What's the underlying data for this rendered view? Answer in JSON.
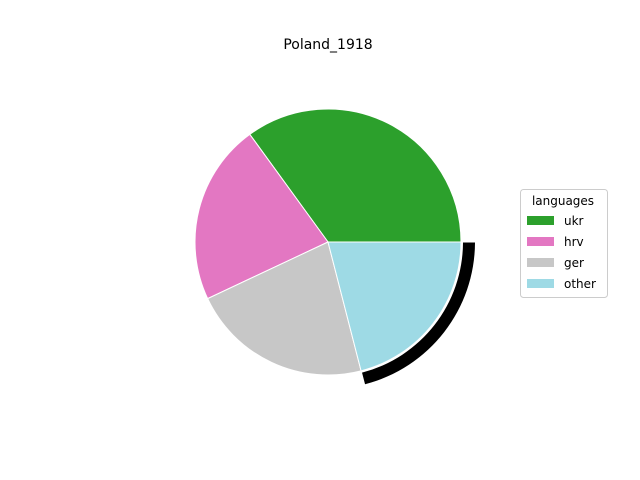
{
  "chart_data": {
    "type": "pie",
    "title": "Poland_1918",
    "legend": {
      "title": "languages",
      "placement": "center-right"
    },
    "slices": [
      {
        "label": "ukr",
        "value": 35,
        "color": "#2ca02c"
      },
      {
        "label": "hrv",
        "value": 22,
        "color": "#e377c2"
      },
      {
        "label": "ger",
        "value": 22,
        "color": "#c7c7c7"
      },
      {
        "label": "other",
        "value": 21,
        "color": "#9edae5",
        "highlighted": true,
        "highlight_color": "#000000"
      }
    ],
    "start_angle_deg": 0,
    "direction": "counterclockwise",
    "wedge_edge_color": "#ffffff"
  }
}
